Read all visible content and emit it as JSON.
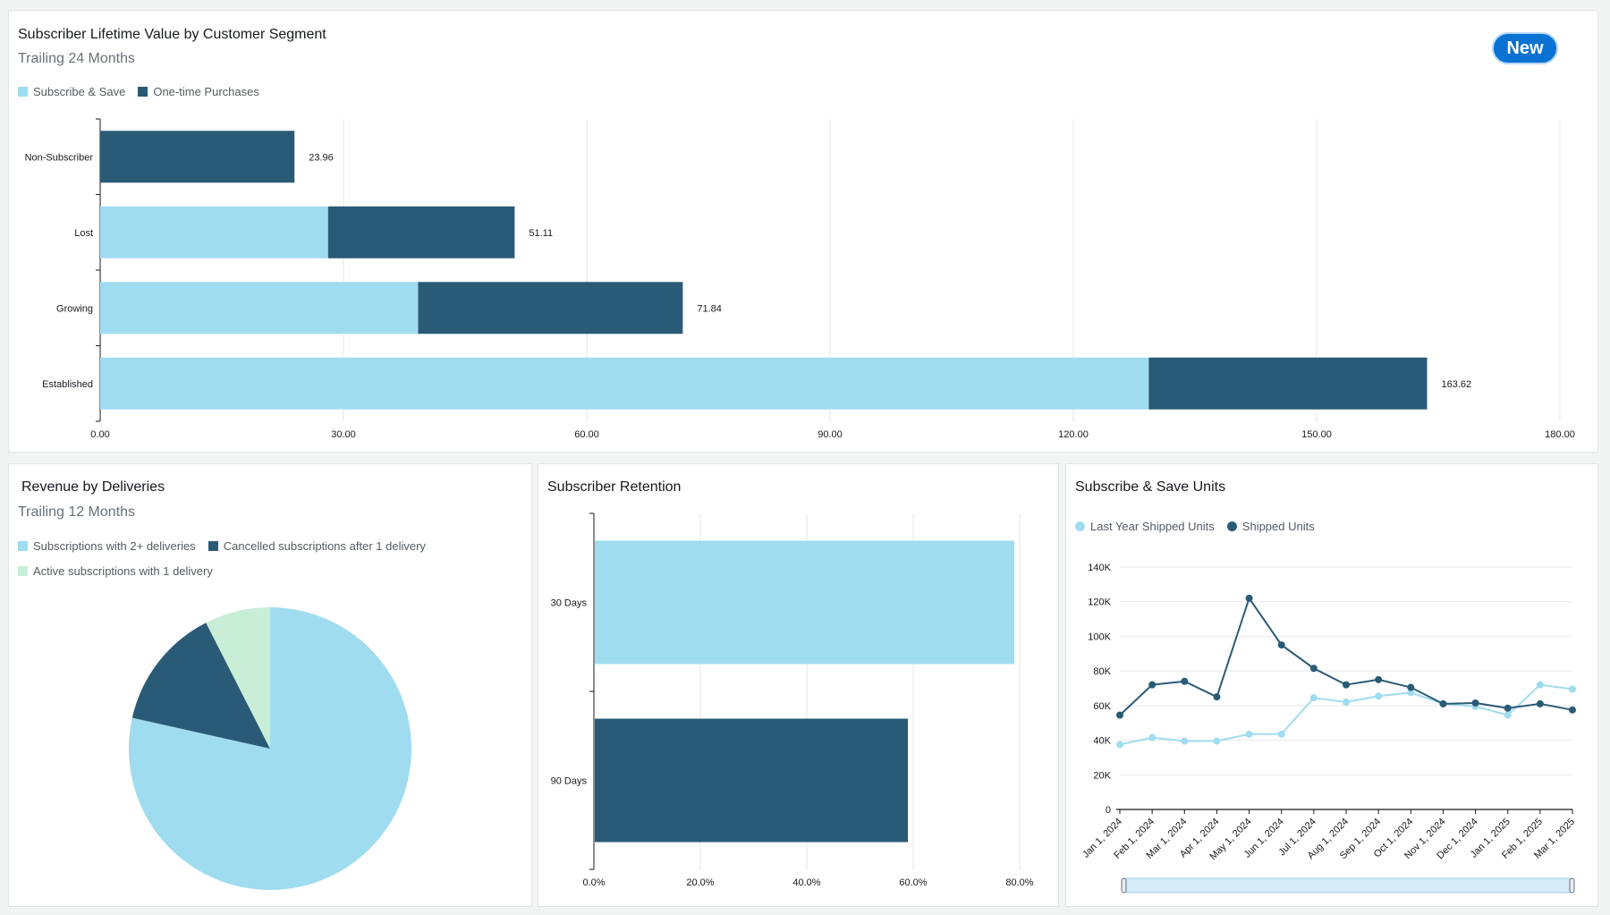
{
  "panels": {
    "ltv": {
      "title": "Subscriber Lifetime Value by Customer Segment",
      "subtitle": "Trailing 24 Months",
      "badge": "New"
    },
    "revenue": {
      "title": "Revenue by Deliveries",
      "subtitle": "Trailing 12 Months"
    },
    "retention": {
      "title": "Subscriber Retention"
    },
    "units": {
      "title": "Subscribe & Save Units"
    }
  },
  "colors": {
    "light": "#a0dcef",
    "dark": "#2a5b76",
    "mint": "#c8eed8",
    "grid": "#e5e7e9",
    "axis": "#16191f"
  },
  "chart_data": [
    {
      "id": "ltv",
      "type": "bar",
      "orientation": "horizontal",
      "stacked": true,
      "title": "Subscriber Lifetime Value by Customer Segment",
      "subtitle": "Trailing 24 Months",
      "categories": [
        "Non-Subscriber",
        "Lost",
        "Growing",
        "Established"
      ],
      "series": [
        {
          "name": "Subscribe & Save",
          "values": [
            0,
            28.1,
            39.2,
            129.3
          ]
        },
        {
          "name": "One-time Purchases",
          "values": [
            23.96,
            23.01,
            32.64,
            34.32
          ]
        }
      ],
      "totals": [
        "23.96",
        "51.11",
        "71.84",
        "163.62"
      ],
      "xlim": [
        0,
        180
      ],
      "ticks": [
        "0.00",
        "30.00",
        "60.00",
        "90.00",
        "120.00",
        "150.00",
        "180.00"
      ],
      "tick_values": [
        0,
        30,
        60,
        90,
        120,
        150,
        180
      ],
      "grid": true,
      "legend": "top-left"
    },
    {
      "id": "revenue",
      "type": "pie",
      "title": "Revenue by Deliveries",
      "subtitle": "Trailing 12 Months",
      "labels": [
        "Subscriptions with 2+ deliveries",
        "Cancelled subscriptions after 1 delivery",
        "Active subscriptions with 1 delivery"
      ],
      "values": [
        78.5,
        14.0,
        7.5
      ],
      "legend": "top-left"
    },
    {
      "id": "retention",
      "type": "bar",
      "orientation": "horizontal",
      "title": "Subscriber Retention",
      "categories": [
        "30 Days",
        "90 Days"
      ],
      "values": [
        79,
        59
      ],
      "xlim": [
        0,
        80
      ],
      "ticks": [
        "0.0%",
        "20.0%",
        "40.0%",
        "60.0%",
        "80.0%"
      ],
      "tick_values": [
        0,
        20,
        40,
        60,
        80
      ],
      "grid": true
    },
    {
      "id": "units",
      "type": "line",
      "title": "Subscribe & Save Units",
      "x": [
        "Jan 1, 2024",
        "Feb 1, 2024",
        "Mar 1, 2024",
        "Apr 1, 2024",
        "May 1, 2024",
        "Jun 1, 2024",
        "Jul 1, 2024",
        "Aug 1, 2024",
        "Sep 1, 2024",
        "Oct 1, 2024",
        "Nov 1, 2024",
        "Dec 1, 2024",
        "Jan 1, 2025",
        "Feb 1, 2025",
        "Mar 1, 2025"
      ],
      "series": [
        {
          "name": "Last Year Shipped Units",
          "values": [
            37500,
            41500,
            39500,
            39500,
            43500,
            43500,
            64500,
            62000,
            65500,
            67500,
            61000,
            59500,
            54500,
            72000,
            69500
          ]
        },
        {
          "name": "Shipped Units",
          "values": [
            54500,
            72000,
            74000,
            65000,
            122000,
            95000,
            81500,
            72000,
            75000,
            70500,
            61000,
            61500,
            58500,
            61000,
            57500
          ]
        }
      ],
      "ylim": [
        0,
        140000
      ],
      "yticks": [
        "0",
        "20K",
        "40K",
        "60K",
        "80K",
        "100K",
        "120K",
        "140K"
      ],
      "ytick_values": [
        0,
        20000,
        40000,
        60000,
        80000,
        100000,
        120000,
        140000
      ],
      "grid": true,
      "legend": "top-left"
    }
  ]
}
